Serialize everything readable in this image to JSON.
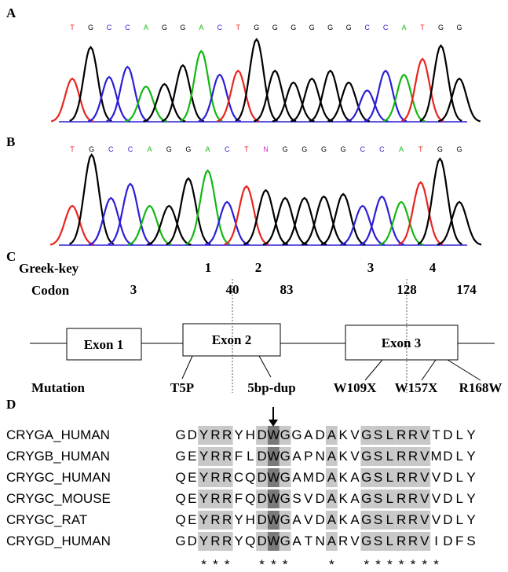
{
  "panel_labels": [
    "A",
    "B",
    "C",
    "D"
  ],
  "chromatograms": [
    {
      "bases": [
        "T",
        "G",
        "C",
        "C",
        "A",
        "G",
        "G",
        "A",
        "C",
        "T",
        "G",
        "G",
        "G",
        "G",
        "G",
        "G",
        "C",
        "C",
        "A",
        "T",
        "G",
        "G"
      ]
    },
    {
      "bases": [
        "T",
        "G",
        "C",
        "C",
        "A",
        "G",
        "G",
        "A",
        "C",
        "T",
        "N",
        "G",
        "G",
        "G",
        "G",
        "C",
        "C",
        "A",
        "T",
        "G",
        "G"
      ]
    }
  ],
  "gene_map": {
    "greek_key_label": "Greek-key",
    "greek_keys": [
      1,
      2,
      3,
      4
    ],
    "codon_label": "Codon",
    "codons": [
      3,
      40,
      83,
      128,
      174
    ],
    "exons": [
      "Exon 1",
      "Exon 2",
      "Exon 3"
    ],
    "mutation_label": "Mutation",
    "mutations": [
      "T5P",
      "5bp-dup",
      "W109X",
      "W157X",
      "R168W"
    ]
  },
  "alignment": {
    "rows": [
      {
        "name": "CRYGA_HUMAN",
        "sequence": "GDYRRYHDWGGADAKVGSLRRVTDLY"
      },
      {
        "name": "CRYGB_HUMAN",
        "sequence": "GEYRRFLDWGAPNAKVGSLRRVMDLY"
      },
      {
        "name": "CRYGC_HUMAN",
        "sequence": "QEYRRCQDWGAMDAKAGSLRRVVDLY"
      },
      {
        "name": "CRYGC_MOUSE",
        "sequence": "QEYRRFQDWGSVDAKAGSLRRVVDLY"
      },
      {
        "name": "CRYGC_RAT",
        "sequence": "QEYRRYHDWGAVDAKAGSLRRVVDLY"
      },
      {
        "name": "CRYGD_HUMAN",
        "sequence": "GDYRRYQDWGATNARVGSLRRVIDFS"
      }
    ],
    "conservation": "  ***  ***   *  *******"
  }
}
